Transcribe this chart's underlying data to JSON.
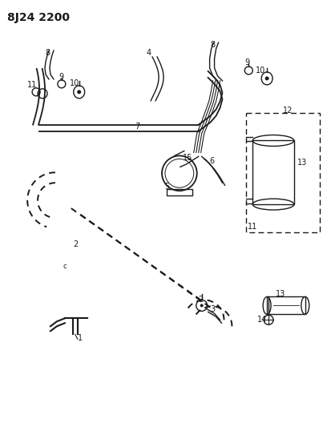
{
  "title": "8J24 2200",
  "bg_color": "#ffffff",
  "line_color": "#1a1a1a",
  "title_fontsize": 10,
  "label_fontsize": 7,
  "fig_width": 4.08,
  "fig_height": 5.33,
  "dpi": 100
}
